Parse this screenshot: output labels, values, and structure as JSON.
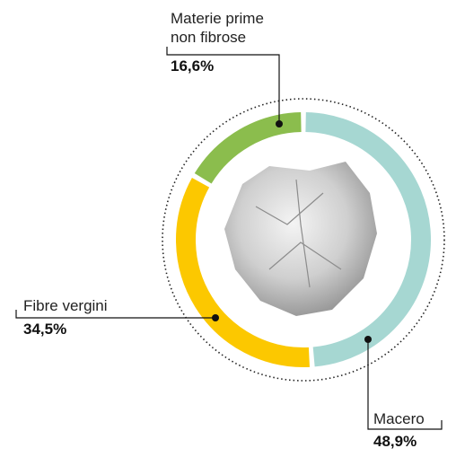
{
  "chart_data": {
    "type": "donut",
    "categories": [
      "Macero",
      "Fibre vergini",
      "Materie prime non fibrose"
    ],
    "values": [
      48.9,
      34.5,
      16.6
    ],
    "value_labels": [
      "48,9%",
      "34,5%",
      "16,6%"
    ],
    "colors": [
      "#a6d7d2",
      "#fcc800",
      "#8bbd4d"
    ]
  }
}
